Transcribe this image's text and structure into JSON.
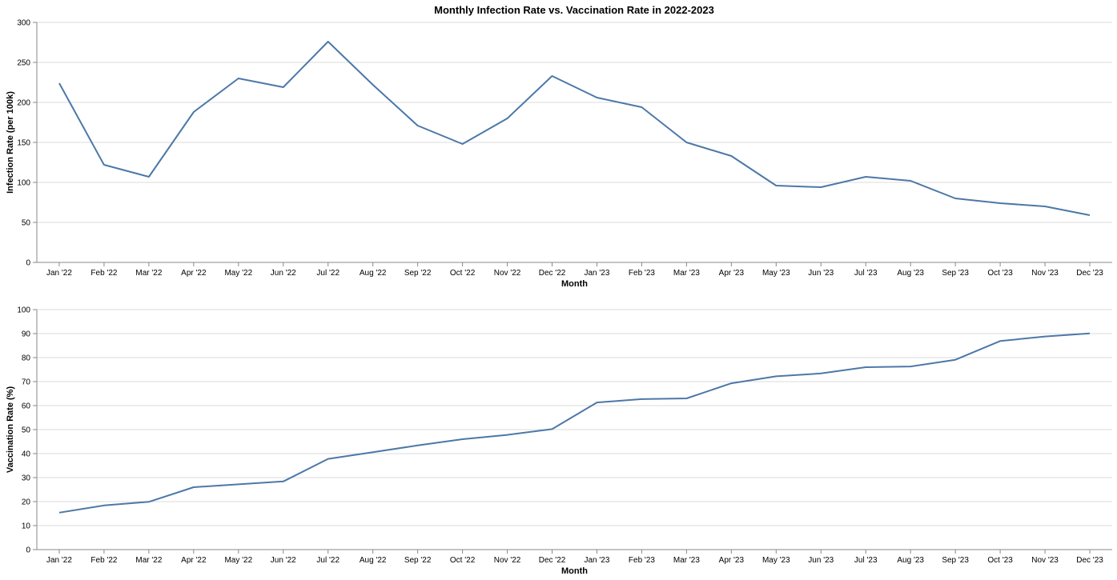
{
  "title": "Monthly Infection Rate vs. Vaccination Rate in 2022-2023",
  "colors": {
    "line": "#4c78a8"
  },
  "chart_data": [
    {
      "type": "line",
      "title": "",
      "xlabel": "Month",
      "ylabel": "Infection Rate (per 100k)",
      "ylim": [
        0,
        300
      ],
      "yticks": [
        0,
        50,
        100,
        150,
        200,
        250,
        300
      ],
      "grid": true,
      "categories": [
        "Jan '22",
        "Feb '22",
        "Mar '22",
        "Apr '22",
        "May '22",
        "Jun '22",
        "Jul '22",
        "Aug '22",
        "Sep '22",
        "Oct '22",
        "Nov '22",
        "Dec '22",
        "Jan '23",
        "Feb '23",
        "Mar '23",
        "Apr '23",
        "May '23",
        "Jun '23",
        "Jul '23",
        "Aug '23",
        "Sep '23",
        "Oct '23",
        "Nov '23",
        "Dec '23"
      ],
      "values": [
        224,
        122,
        107,
        188,
        230,
        219,
        276,
        222,
        171,
        148,
        180,
        233,
        206,
        194,
        150,
        133,
        96,
        94,
        107,
        102,
        80,
        74,
        70,
        59
      ]
    },
    {
      "type": "line",
      "title": "",
      "xlabel": "Month",
      "ylabel": "Vaccination Rate (%)",
      "ylim": [
        0,
        100
      ],
      "yticks": [
        0,
        10,
        20,
        30,
        40,
        50,
        60,
        70,
        80,
        90,
        100
      ],
      "grid": true,
      "categories": [
        "Jan '22",
        "Feb '22",
        "Mar '22",
        "Apr '22",
        "May '22",
        "Jun '22",
        "Jul '22",
        "Aug '22",
        "Sep '22",
        "Oct '22",
        "Nov '22",
        "Dec '22",
        "Jan '23",
        "Feb '23",
        "Mar '23",
        "Apr '23",
        "May '23",
        "Jun '23",
        "Jul '23",
        "Aug '23",
        "Sep '23",
        "Oct '23",
        "Nov '23",
        "Dec '23"
      ],
      "values": [
        15.4,
        18.4,
        19.9,
        26.0,
        27.2,
        28.4,
        37.8,
        40.6,
        43.4,
        46.0,
        47.8,
        50.2,
        61.3,
        62.7,
        63.0,
        69.3,
        72.2,
        73.4,
        76.0,
        76.3,
        79.1,
        86.9,
        88.8,
        90.1
      ]
    }
  ]
}
